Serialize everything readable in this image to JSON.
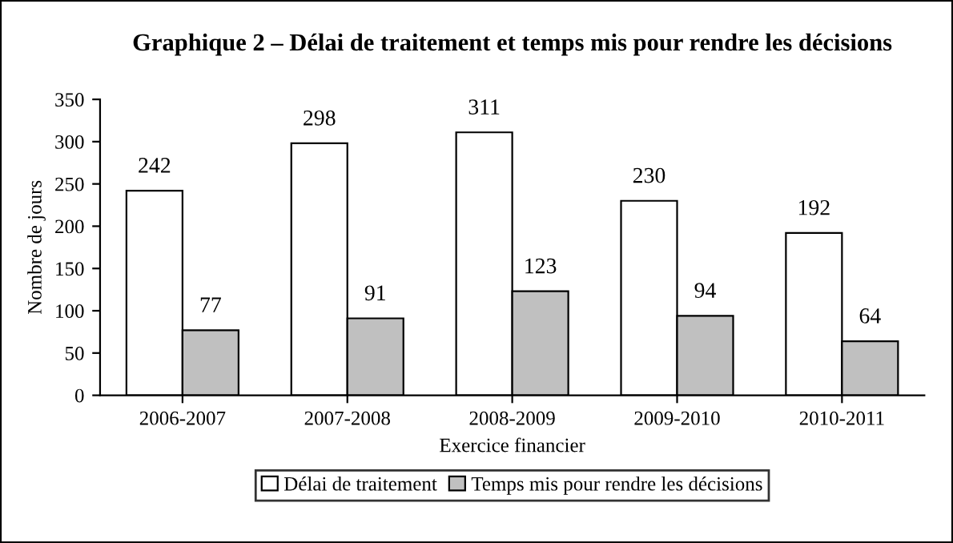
{
  "chart_data": {
    "type": "bar",
    "title": "Graphique 2 – Délai de traitement et temps mis pour rendre les décisions",
    "xlabel": "Exercice financier",
    "ylabel": "Nombre de jours",
    "categories": [
      "2006-2007",
      "2007-2008",
      "2008-2009",
      "2009-2010",
      "2010-2011"
    ],
    "series": [
      {
        "name": "Délai de traitement",
        "color": "#ffffff",
        "values": [
          242,
          298,
          311,
          230,
          192
        ]
      },
      {
        "name": "Temps mis pour rendre les décisions",
        "color": "#c0c0c0",
        "values": [
          77,
          91,
          123,
          94,
          64
        ]
      }
    ],
    "ylim": [
      0,
      350
    ],
    "yticks": [
      0,
      50,
      100,
      150,
      200,
      250,
      300,
      350
    ],
    "grid": false,
    "legend": "bottom",
    "data_labels": true
  }
}
